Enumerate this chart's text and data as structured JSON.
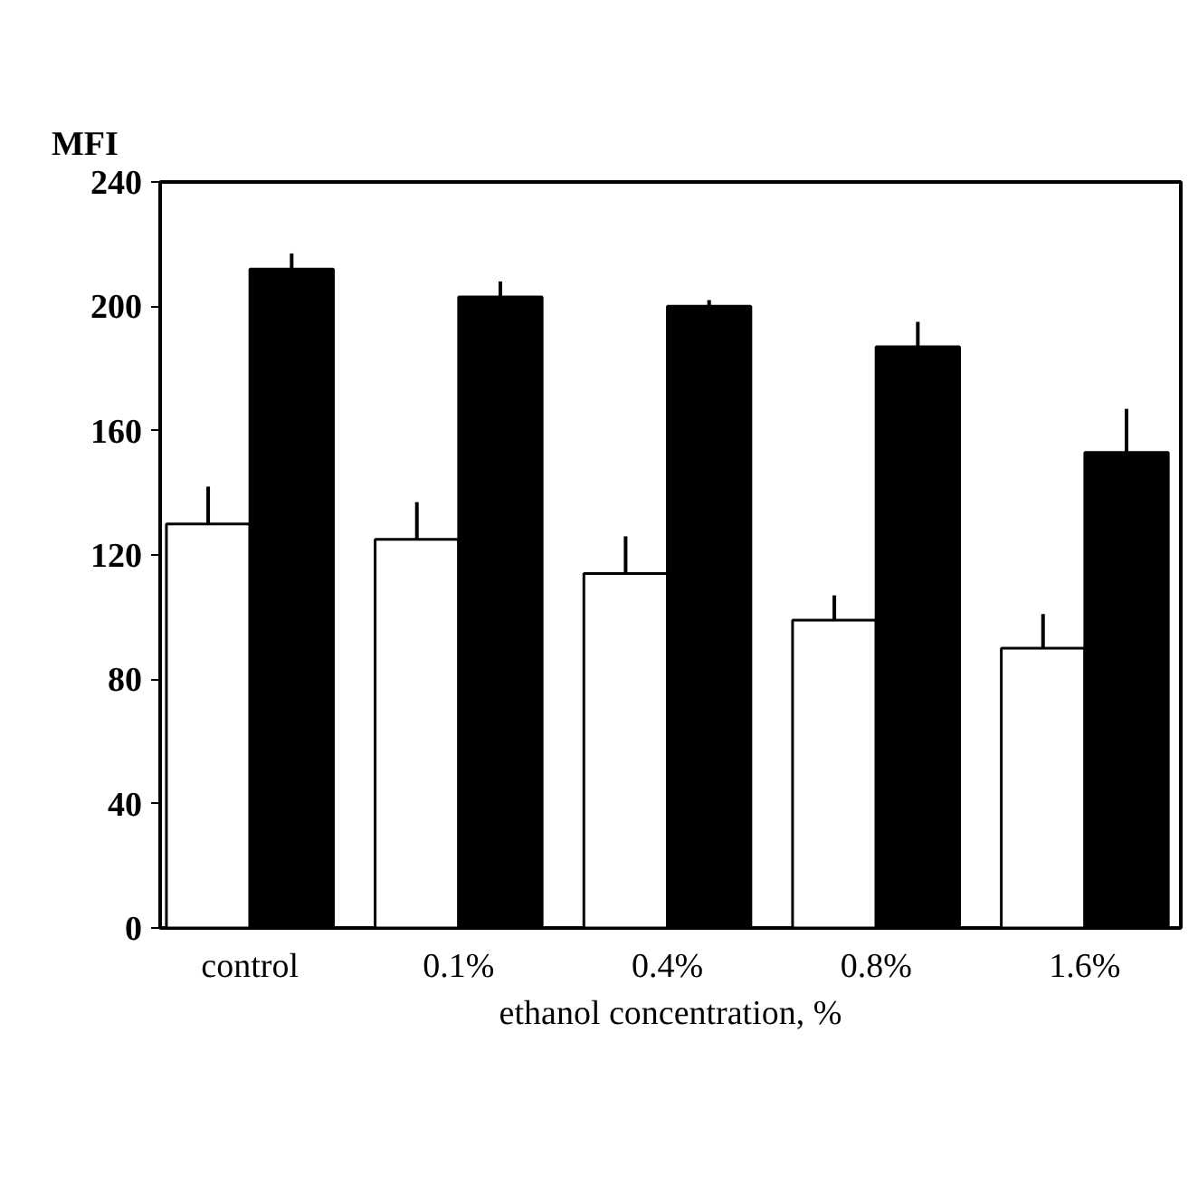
{
  "chart_data": {
    "type": "bar",
    "xlabel": "ethanol concentration, %",
    "ylabel": "MFI",
    "categories": [
      "control",
      "0.1%",
      "0.4%",
      "0.8%",
      "1.6%"
    ],
    "series": [
      {
        "color": "#ffffff",
        "values": [
          130,
          125,
          114,
          99,
          90
        ],
        "errors": [
          [
            130,
            142
          ],
          [
            125,
            137
          ],
          [
            114,
            126
          ],
          [
            99,
            107
          ],
          [
            90,
            101
          ]
        ]
      },
      {
        "color": "#000000",
        "values": [
          212,
          203,
          200,
          187,
          153
        ],
        "errors": [
          [
            212,
            217
          ],
          [
            203,
            208
          ],
          [
            200,
            202
          ],
          [
            187,
            195
          ],
          [
            153,
            167
          ]
        ]
      }
    ],
    "ylim": [
      0,
      240
    ],
    "yticks": [
      0,
      40,
      80,
      120,
      160,
      200,
      240
    ],
    "grid": false
  }
}
